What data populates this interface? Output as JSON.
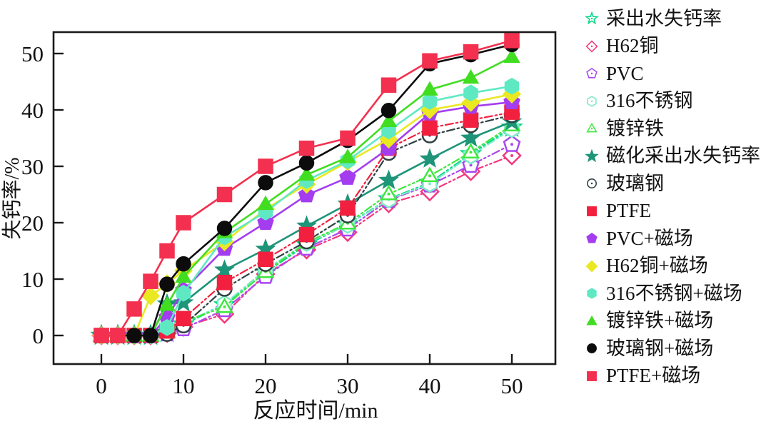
{
  "figure": {
    "background": "#ffffff"
  },
  "axes": {
    "x_tick_labels": [
      "0",
      "10",
      "20",
      "30",
      "40",
      "50"
    ],
    "y_tick_labels": [
      "0",
      "10",
      "20",
      "30",
      "40",
      "50"
    ]
  },
  "chart_data": {
    "type": "line",
    "title": "",
    "xlabel": "反应时间/min",
    "ylabel": "失钙率/%",
    "xlim": [
      -5.8,
      55.3
    ],
    "ylim": [
      -5.1,
      53.8
    ],
    "xticks": [
      0,
      10,
      20,
      30,
      40,
      50
    ],
    "yticks": [
      0,
      10,
      20,
      30,
      40,
      50
    ],
    "grid": false,
    "legend_position": "right-outside",
    "x": [
      0,
      2,
      4,
      6,
      8,
      10,
      15,
      20,
      25,
      30,
      35,
      40,
      45,
      50
    ],
    "series": [
      {
        "name": "采出水失钙率",
        "marker": "star",
        "filled": false,
        "color": "#00d882",
        "line": "dashdot",
        "values": [
          0,
          0,
          0,
          0,
          0.5,
          2.0,
          5.4,
          11.2,
          16.1,
          19.7,
          24.2,
          27.1,
          32.2,
          36.9
        ]
      },
      {
        "name": "H62铜",
        "marker": "diamond",
        "filled": false,
        "color": "#f4387e",
        "line": "dashdot",
        "values": [
          0,
          0,
          0,
          0,
          0.4,
          1.5,
          3.8,
          10.9,
          15.2,
          18.3,
          23.4,
          25.5,
          29.1,
          31.9
        ]
      },
      {
        "name": "PVC",
        "marker": "pentagon",
        "filled": false,
        "color": "#aa46f0",
        "line": "dashdot",
        "values": [
          0,
          0,
          0,
          0,
          0.3,
          1.2,
          4.6,
          10.5,
          15.5,
          18.9,
          24.0,
          26.7,
          30.2,
          33.9
        ]
      },
      {
        "name": "316不锈钢",
        "marker": "hexagon",
        "filled": false,
        "color": "#7fe9cb",
        "line": "dashdot",
        "values": [
          0,
          0,
          0,
          0,
          0.6,
          2.2,
          5.6,
          11.7,
          16.4,
          19.6,
          24.1,
          26.9,
          31.9,
          36.6
        ]
      },
      {
        "name": "镀锌铁",
        "marker": "triangle",
        "filled": false,
        "color": "#3fe83f",
        "line": "dashdot",
        "values": [
          0,
          0,
          0,
          0,
          0.7,
          2.4,
          5.1,
          11.3,
          16.5,
          19.9,
          25.1,
          28.3,
          32.5,
          37.3
        ]
      },
      {
        "name": "磁化采出水失钙率",
        "marker": "star",
        "filled": true,
        "color": "#1e9478",
        "line": "solid",
        "values": [
          0,
          0,
          0,
          0,
          5.6,
          5.8,
          11.6,
          15.3,
          19.4,
          23.3,
          27.5,
          31.3,
          35.0,
          37.9
        ]
      },
      {
        "name": "玻璃钢",
        "marker": "circle",
        "filled": false,
        "color": "#2f4143",
        "line": "dashdot",
        "values": [
          0,
          0,
          0,
          0,
          0.3,
          1.8,
          8.3,
          12.7,
          16.7,
          21.3,
          32.4,
          35.5,
          37.3,
          39.1
        ]
      },
      {
        "name": "PTFE",
        "marker": "square",
        "filled": true,
        "color": "#f2203e",
        "line": "dashdot",
        "values": [
          0,
          0,
          0,
          0,
          0.8,
          3.0,
          9.4,
          13.5,
          17.9,
          22.6,
          33.2,
          36.8,
          38.2,
          39.6
        ]
      },
      {
        "name": "PVC+磁场",
        "marker": "pentagon",
        "filled": true,
        "color": "#a43df0",
        "line": "solid",
        "values": [
          0,
          0,
          0,
          0,
          3.2,
          8.0,
          15.4,
          20.0,
          24.9,
          28.0,
          33.2,
          39.4,
          40.6,
          41.4
        ]
      },
      {
        "name": "H62铜+磁场",
        "marker": "diamond",
        "filled": true,
        "color": "#e9e821",
        "line": "solid",
        "values": [
          0,
          0,
          0,
          7.0,
          9.2,
          11.5,
          16.6,
          22.4,
          26.8,
          30.8,
          34.8,
          40.0,
          41.3,
          42.8
        ]
      },
      {
        "name": "316不锈钢+磁场",
        "marker": "hexagon",
        "filled": true,
        "color": "#5fe9c3",
        "line": "solid",
        "values": [
          0,
          0,
          0,
          0,
          1.4,
          7.5,
          17.5,
          21.9,
          27.5,
          31.0,
          36.3,
          41.5,
          43.0,
          44.2
        ]
      },
      {
        "name": "镀锌铁+磁场",
        "marker": "triangle",
        "filled": true,
        "color": "#41dd21",
        "line": "solid",
        "values": [
          0,
          0,
          0,
          0,
          5.4,
          10.4,
          18.3,
          23.3,
          28.5,
          31.6,
          38.0,
          43.6,
          45.7,
          49.4
        ]
      },
      {
        "name": "玻璃钢+磁场",
        "marker": "circle",
        "filled": true,
        "color": "#0c0c0c",
        "line": "solid",
        "values": [
          0,
          0,
          0,
          0,
          9.1,
          12.7,
          19.0,
          27.1,
          30.6,
          34.6,
          39.9,
          48.2,
          49.8,
          51.6
        ]
      },
      {
        "name": "PTFE+磁场",
        "marker": "square",
        "filled": true,
        "color": "#f3304f",
        "line": "solid",
        "values": [
          0,
          0,
          4.7,
          9.6,
          15.0,
          20.0,
          25.0,
          30.0,
          33.2,
          35.0,
          44.4,
          48.7,
          50.3,
          52.3
        ]
      }
    ]
  }
}
